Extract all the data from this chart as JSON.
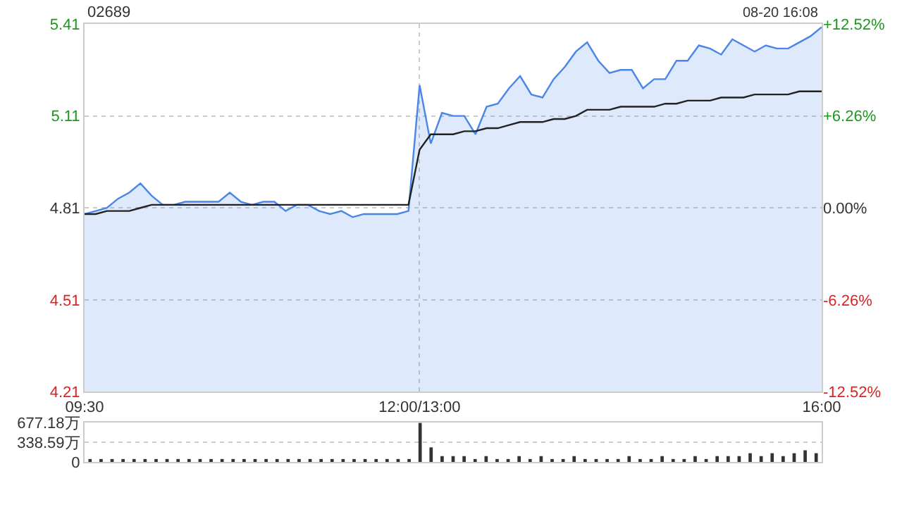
{
  "chart_data": [
    {
      "type": "line",
      "title": "02689",
      "annotations": [
        "08-20 16:08"
      ],
      "categories": [
        "09:30",
        null,
        null,
        null,
        null,
        null,
        null,
        null,
        null,
        null,
        null,
        null,
        null,
        null,
        null,
        null,
        null,
        null,
        null,
        null,
        null,
        null,
        null,
        null,
        null,
        null,
        null,
        null,
        null,
        null,
        "12:00/13:00",
        null,
        null,
        null,
        null,
        null,
        null,
        null,
        null,
        null,
        null,
        null,
        null,
        null,
        null,
        null,
        null,
        null,
        null,
        null,
        null,
        null,
        null,
        null,
        null,
        null,
        null,
        null,
        null,
        null,
        null,
        null,
        null,
        null,
        null,
        null,
        "16:00"
      ],
      "ylim": [
        4.21,
        5.41
      ],
      "yticks": [
        4.21,
        4.51,
        4.81,
        5.11,
        5.41
      ],
      "y2lim": [
        -12.52,
        12.52
      ],
      "y2ticks": [
        {
          "value": -12.52,
          "label": "-12.52%"
        },
        {
          "value": -6.26,
          "label": "-6.26%"
        },
        {
          "value": 0,
          "label": "0.00%"
        },
        {
          "value": 6.26,
          "label": "+6.26%"
        },
        {
          "value": 12.52,
          "label": "+12.52%"
        }
      ],
      "grid": true,
      "legend": false,
      "marker": "none",
      "series": [
        {
          "type": "area",
          "color": "#4a86e8",
          "values": [
            4.79,
            4.8,
            4.81,
            4.84,
            4.86,
            4.89,
            4.85,
            4.82,
            4.82,
            4.83,
            4.83,
            4.83,
            4.83,
            4.86,
            4.83,
            4.82,
            4.83,
            4.83,
            4.8,
            4.82,
            4.82,
            4.8,
            4.79,
            4.8,
            4.78,
            4.79,
            4.79,
            4.79,
            4.79,
            4.8,
            5.21,
            5.02,
            5.12,
            5.11,
            5.11,
            5.05,
            5.14,
            5.15,
            5.2,
            5.24,
            5.18,
            5.17,
            5.23,
            5.27,
            5.32,
            5.35,
            5.29,
            5.25,
            5.26,
            5.26,
            5.2,
            5.23,
            5.23,
            5.29,
            5.29,
            5.34,
            5.33,
            5.31,
            5.36,
            5.34,
            5.32,
            5.34,
            5.33,
            5.33,
            5.35,
            5.37,
            5.4
          ]
        },
        {
          "type": "line",
          "color": "#222222",
          "values": [
            4.79,
            4.79,
            4.8,
            4.8,
            4.8,
            4.81,
            4.82,
            4.82,
            4.82,
            4.82,
            4.82,
            4.82,
            4.82,
            4.82,
            4.82,
            4.82,
            4.82,
            4.82,
            4.82,
            4.82,
            4.82,
            4.82,
            4.82,
            4.82,
            4.82,
            4.82,
            4.82,
            4.82,
            4.82,
            4.82,
            5.0,
            5.05,
            5.05,
            5.05,
            5.06,
            5.06,
            5.07,
            5.07,
            5.08,
            5.09,
            5.09,
            5.09,
            5.1,
            5.1,
            5.11,
            5.13,
            5.13,
            5.13,
            5.14,
            5.14,
            5.14,
            5.14,
            5.15,
            5.15,
            5.16,
            5.16,
            5.16,
            5.17,
            5.17,
            5.17,
            5.18,
            5.18,
            5.18,
            5.18,
            5.19,
            5.19,
            5.19
          ]
        }
      ]
    },
    {
      "type": "bar",
      "categories": [
        null,
        null,
        null,
        null,
        null,
        null,
        null,
        null,
        null,
        null,
        null,
        null,
        null,
        null,
        null,
        null,
        null,
        null,
        null,
        null,
        null,
        null,
        null,
        null,
        null,
        null,
        null,
        null,
        null,
        null,
        null,
        null,
        null,
        null,
        null,
        null,
        null,
        null,
        null,
        null,
        null,
        null,
        null,
        null,
        null,
        null,
        null,
        null,
        null,
        null,
        null,
        null,
        null,
        null,
        null,
        null,
        null,
        null,
        null,
        null,
        null,
        null,
        null,
        null,
        null,
        null,
        null
      ],
      "tick_labels": "y",
      "ylim": [
        0,
        677.18
      ],
      "yticks": [
        0,
        {
          "value": 338.59,
          "label": "338.59万"
        },
        {
          "value": 677.18,
          "label": "677.18万"
        }
      ],
      "grid": "y",
      "color": "#333333",
      "values": [
        50,
        50,
        50,
        50,
        50,
        50,
        50,
        50,
        50,
        50,
        50,
        50,
        50,
        50,
        50,
        50,
        50,
        50,
        50,
        50,
        50,
        50,
        50,
        50,
        50,
        50,
        50,
        50,
        50,
        50,
        670,
        250,
        100,
        100,
        100,
        50,
        100,
        50,
        50,
        100,
        50,
        100,
        50,
        50,
        100,
        50,
        50,
        50,
        50,
        100,
        50,
        50,
        100,
        50,
        50,
        100,
        50,
        100,
        100,
        100,
        150,
        100,
        150,
        100,
        150,
        200,
        150
      ]
    }
  ]
}
